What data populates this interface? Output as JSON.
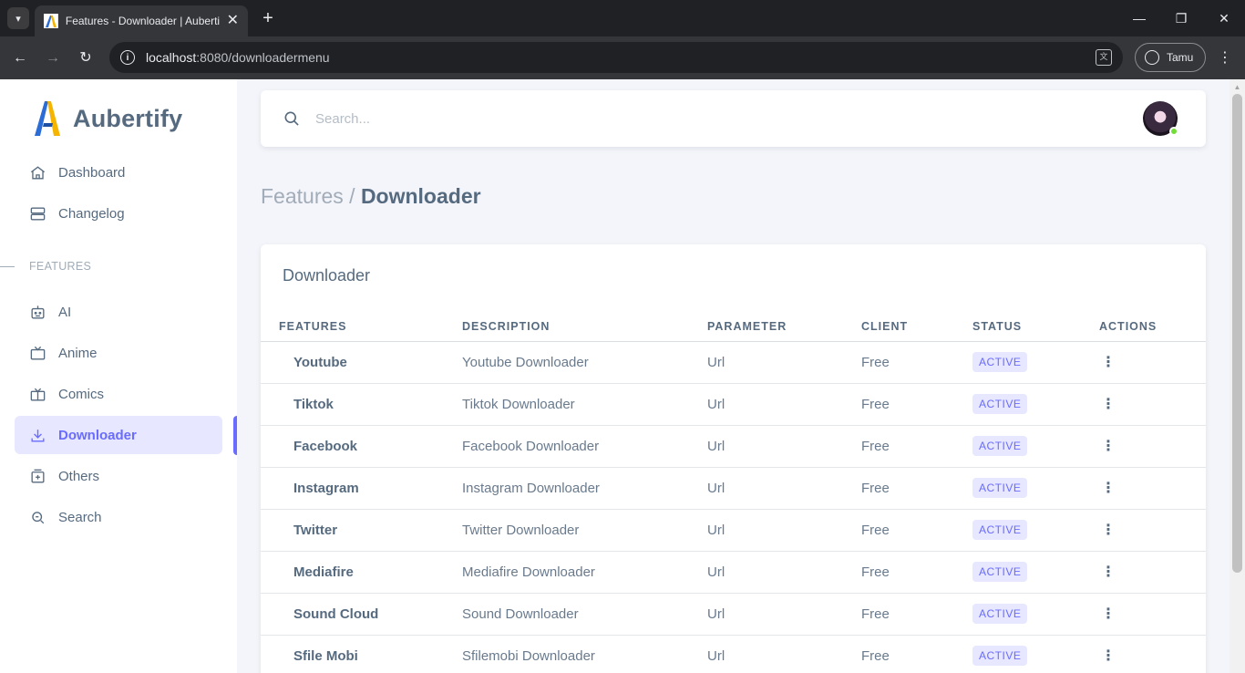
{
  "browser": {
    "tab_title": "Features - Downloader | Aubertify",
    "tab_close": "✕",
    "new_tab": "+",
    "url_host": "localhost",
    "url_rest": ":8080/downloadermenu",
    "profile_label": "Tamu"
  },
  "sidebar": {
    "brand": "Aubertify",
    "items_top": [
      {
        "label": "Dashboard",
        "icon": "home-icon"
      },
      {
        "label": "Changelog",
        "icon": "server-icon"
      }
    ],
    "section_label": "FEATURES",
    "items_features": [
      {
        "label": "AI",
        "icon": "robot-icon"
      },
      {
        "label": "Anime",
        "icon": "tv-icon"
      },
      {
        "label": "Comics",
        "icon": "book-icon"
      },
      {
        "label": "Downloader",
        "icon": "download-icon",
        "active": true
      },
      {
        "label": "Others",
        "icon": "plus-box-icon"
      },
      {
        "label": "Search",
        "icon": "search-icon"
      }
    ]
  },
  "navbar": {
    "search_placeholder": "Search..."
  },
  "breadcrumb": {
    "parent": "Features /",
    "current": "Downloader"
  },
  "card": {
    "title": "Downloader",
    "columns": [
      "FEATURES",
      "DESCRIPTION",
      "PARAMETER",
      "CLIENT",
      "STATUS",
      "ACTIONS"
    ],
    "rows": [
      {
        "feature": "Youtube",
        "description": "Youtube Downloader",
        "parameter": "Url",
        "client": "Free",
        "status": "ACTIVE"
      },
      {
        "feature": "Tiktok",
        "description": "Tiktok Downloader",
        "parameter": "Url",
        "client": "Free",
        "status": "ACTIVE"
      },
      {
        "feature": "Facebook",
        "description": "Facebook Downloader",
        "parameter": "Url",
        "client": "Free",
        "status": "ACTIVE"
      },
      {
        "feature": "Instagram",
        "description": "Instagram Downloader",
        "parameter": "Url",
        "client": "Free",
        "status": "ACTIVE"
      },
      {
        "feature": "Twitter",
        "description": "Twitter Downloader",
        "parameter": "Url",
        "client": "Free",
        "status": "ACTIVE"
      },
      {
        "feature": "Mediafire",
        "description": "Mediafire Downloader",
        "parameter": "Url",
        "client": "Free",
        "status": "ACTIVE"
      },
      {
        "feature": "Sound Cloud",
        "description": "Sound Downloader",
        "parameter": "Url",
        "client": "Free",
        "status": "ACTIVE"
      },
      {
        "feature": "Sfile Mobi",
        "description": "Sfilemobi Downloader",
        "parameter": "Url",
        "client": "Free",
        "status": "ACTIVE"
      }
    ]
  },
  "colors": {
    "accent": "#696cff",
    "accent_bg": "#e7e7ff",
    "text": "#566a7f",
    "online": "#71dd37"
  }
}
